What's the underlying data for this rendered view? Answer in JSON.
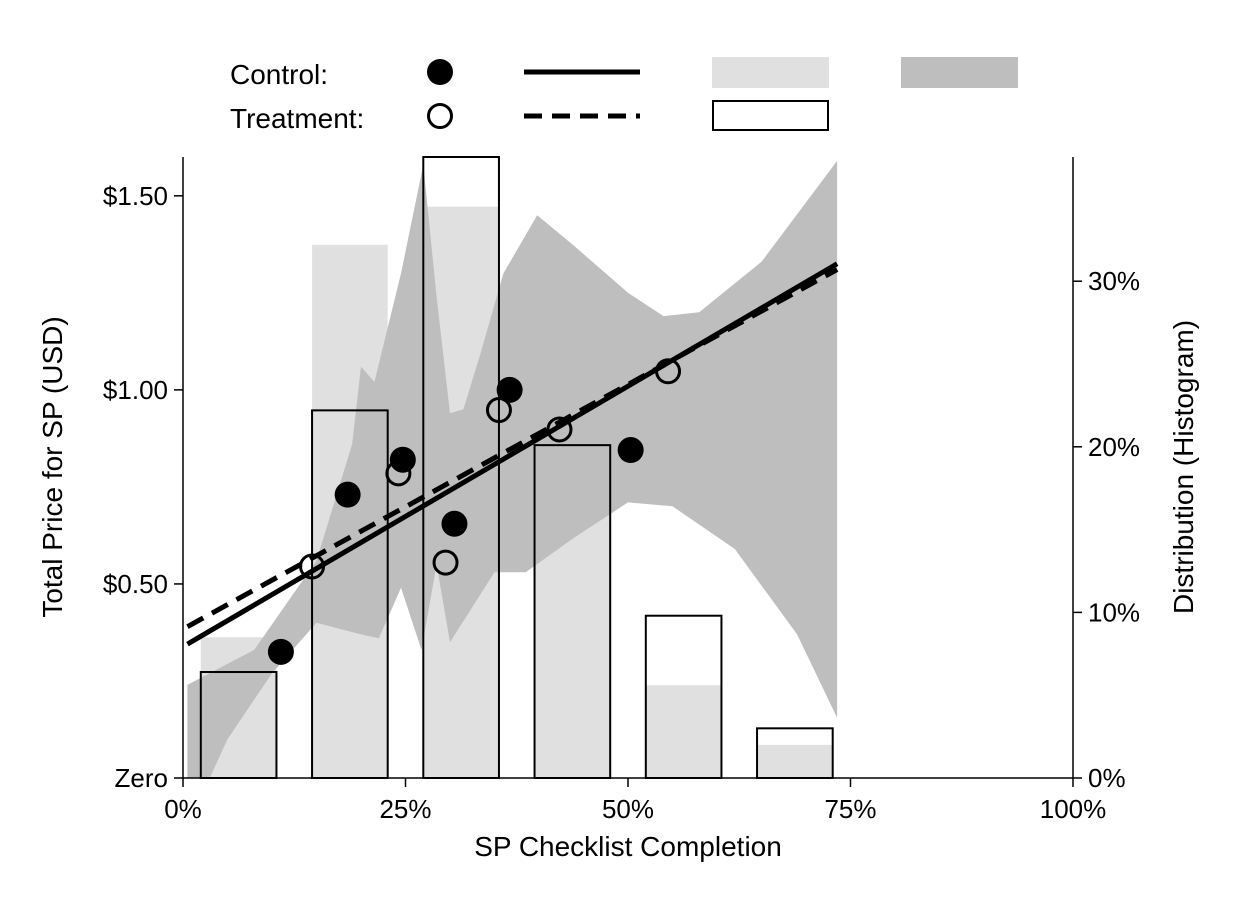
{
  "chart_data": {
    "type": "scatter",
    "title": "",
    "xlabel": "SP Checklist Completion",
    "ylabel": "Total Price for SP (USD)",
    "y2label": "Distribution (Histogram)",
    "xlim": [
      0,
      1
    ],
    "ylim": [
      0,
      1.6
    ],
    "y2lim": [
      0,
      0.375
    ],
    "x_ticks": [
      {
        "value": 0,
        "label": "0%"
      },
      {
        "value": 0.25,
        "label": "25%"
      },
      {
        "value": 0.5,
        "label": "50%"
      },
      {
        "value": 0.75,
        "label": "75%"
      },
      {
        "value": 1,
        "label": "100%"
      }
    ],
    "y_ticks": [
      {
        "value": 0,
        "label": "Zero"
      },
      {
        "value": 0.5,
        "label": "$0.50"
      },
      {
        "value": 1.0,
        "label": "$1.00"
      },
      {
        "value": 1.5,
        "label": "$1.50"
      }
    ],
    "y2_ticks": [
      {
        "value": 0,
        "label": "0%"
      },
      {
        "value": 0.1,
        "label": "10%"
      },
      {
        "value": 0.2,
        "label": "20%"
      },
      {
        "value": 0.3,
        "label": "30%"
      }
    ],
    "legend": {
      "position": "top",
      "control_label": "Control:",
      "treatment_label": "Treatment:"
    },
    "colors": {
      "control_hist": "#e0e0e0",
      "confidence_band": "#bebebe",
      "treatment_hist_edge": "#000000",
      "line": "#000000"
    },
    "series": [
      {
        "name": "Control",
        "points": [
          {
            "x": 0.11,
            "y": 0.325
          },
          {
            "x": 0.185,
            "y": 0.73
          },
          {
            "x": 0.247,
            "y": 0.82
          },
          {
            "x": 0.305,
            "y": 0.655
          },
          {
            "x": 0.367,
            "y": 1.0
          },
          {
            "x": 0.503,
            "y": 0.845
          }
        ],
        "fit": [
          {
            "x": 0.005,
            "y": 0.345
          },
          {
            "x": 0.735,
            "y": 1.325
          }
        ],
        "histogram": [
          {
            "x0": 0.02,
            "x1": 0.105,
            "value": 0.085
          },
          {
            "x0": 0.145,
            "x1": 0.23,
            "value": 0.322
          },
          {
            "x0": 0.27,
            "x1": 0.355,
            "value": 0.345
          },
          {
            "x0": 0.395,
            "x1": 0.48,
            "value": 0.163
          },
          {
            "x0": 0.52,
            "x1": 0.605,
            "value": 0.056
          },
          {
            "x0": 0.645,
            "x1": 0.73,
            "value": 0.02
          }
        ]
      },
      {
        "name": "Treatment",
        "points": [
          {
            "x": 0.145,
            "y": 0.545
          },
          {
            "x": 0.242,
            "y": 0.785
          },
          {
            "x": 0.295,
            "y": 0.555
          },
          {
            "x": 0.355,
            "y": 0.948
          },
          {
            "x": 0.423,
            "y": 0.898
          },
          {
            "x": 0.545,
            "y": 1.048
          }
        ],
        "fit": [
          {
            "x": 0.005,
            "y": 0.39
          },
          {
            "x": 0.735,
            "y": 1.31
          }
        ],
        "histogram": [
          {
            "x0": 0.02,
            "x1": 0.105,
            "value": 0.064
          },
          {
            "x0": 0.145,
            "x1": 0.23,
            "value": 0.222
          },
          {
            "x0": 0.27,
            "x1": 0.355,
            "value": 0.375
          },
          {
            "x0": 0.395,
            "x1": 0.48,
            "value": 0.201
          },
          {
            "x0": 0.52,
            "x1": 0.605,
            "value": 0.098
          },
          {
            "x0": 0.645,
            "x1": 0.73,
            "value": 0.03
          }
        ]
      }
    ],
    "confidence_band": {
      "upper": [
        {
          "x": 0.005,
          "y": 0.24
        },
        {
          "x": 0.08,
          "y": 0.33
        },
        {
          "x": 0.15,
          "y": 0.56
        },
        {
          "x": 0.19,
          "y": 0.86
        },
        {
          "x": 0.2,
          "y": 1.06
        },
        {
          "x": 0.215,
          "y": 1.02
        },
        {
          "x": 0.245,
          "y": 1.3
        },
        {
          "x": 0.27,
          "y": 1.58
        },
        {
          "x": 0.285,
          "y": 1.24
        },
        {
          "x": 0.3,
          "y": 0.94
        },
        {
          "x": 0.315,
          "y": 0.95
        },
        {
          "x": 0.335,
          "y": 1.1
        },
        {
          "x": 0.36,
          "y": 1.3
        },
        {
          "x": 0.398,
          "y": 1.45
        },
        {
          "x": 0.44,
          "y": 1.37
        },
        {
          "x": 0.5,
          "y": 1.25
        },
        {
          "x": 0.54,
          "y": 1.19
        },
        {
          "x": 0.58,
          "y": 1.2
        },
        {
          "x": 0.65,
          "y": 1.33
        },
        {
          "x": 0.735,
          "y": 1.59
        }
      ],
      "lower": [
        {
          "x": 0.735,
          "y": 0.155
        },
        {
          "x": 0.69,
          "y": 0.37
        },
        {
          "x": 0.62,
          "y": 0.59
        },
        {
          "x": 0.55,
          "y": 0.7
        },
        {
          "x": 0.5,
          "y": 0.71
        },
        {
          "x": 0.44,
          "y": 0.62
        },
        {
          "x": 0.385,
          "y": 0.53
        },
        {
          "x": 0.35,
          "y": 0.53
        },
        {
          "x": 0.3,
          "y": 0.35
        },
        {
          "x": 0.285,
          "y": 0.55
        },
        {
          "x": 0.268,
          "y": 0.33
        },
        {
          "x": 0.245,
          "y": 0.49
        },
        {
          "x": 0.22,
          "y": 0.36
        },
        {
          "x": 0.2,
          "y": 0.37
        },
        {
          "x": 0.15,
          "y": 0.4
        },
        {
          "x": 0.1,
          "y": 0.27
        },
        {
          "x": 0.05,
          "y": 0.1
        },
        {
          "x": 0.03,
          "y": 0.0
        },
        {
          "x": 0.005,
          "y": 0.0
        }
      ]
    }
  }
}
